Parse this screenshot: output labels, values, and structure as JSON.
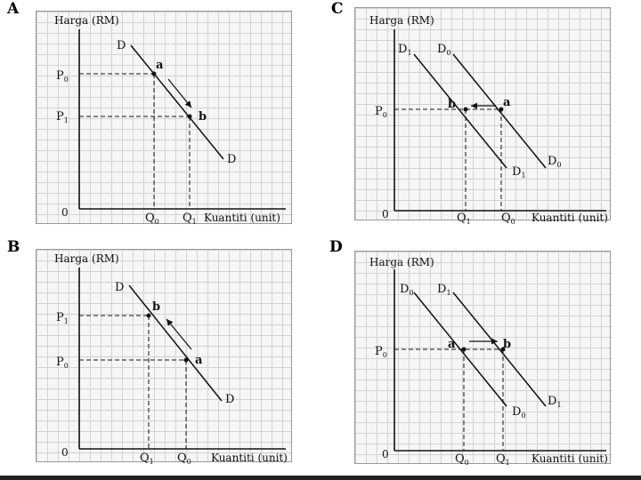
{
  "panels": {
    "A": {
      "letter": "A",
      "y_label": "Harga (RM)",
      "x_label": "Kuantiti (unit)",
      "origin": "0",
      "p_upper": "P",
      "p_upper_sub": "0",
      "p_lower": "P",
      "p_lower_sub": "1",
      "q_left": "Q",
      "q_left_sub": "0",
      "q_right": "Q",
      "q_right_sub": "1",
      "curve_top": "D",
      "curve_bottom": "D",
      "point_upper": "a",
      "point_lower": "b"
    },
    "B": {
      "letter": "B",
      "y_label": "Harga (RM)",
      "x_label": "Kuantiti (unit)",
      "origin": "0",
      "p_upper": "P",
      "p_upper_sub": "1",
      "p_lower": "P",
      "p_lower_sub": "0",
      "q_left": "Q",
      "q_left_sub": "1",
      "q_right": "Q",
      "q_right_sub": "0",
      "curve_top": "D",
      "curve_bottom": "D",
      "point_upper": "b",
      "point_lower": "a"
    },
    "C": {
      "letter": "C",
      "y_label": "Harga (RM)",
      "x_label": "Kuantiti (unit)",
      "origin": "0",
      "p": "P",
      "p_sub": "0",
      "q_left": "Q",
      "q_left_sub": "1",
      "q_right": "Q",
      "q_right_sub": "0",
      "left_curve_top": "D",
      "left_curve_top_sub": "1",
      "right_curve_top": "D",
      "right_curve_top_sub": "0",
      "left_curve_bottom": "D",
      "left_curve_bottom_sub": "1",
      "right_curve_bottom": "D",
      "right_curve_bottom_sub": "0",
      "point_left": "b",
      "point_right": "a"
    },
    "D": {
      "letter": "D",
      "y_label": "Harga (RM)",
      "x_label": "Kuantiti (unit)",
      "origin": "0",
      "p": "P",
      "p_sub": "0",
      "q_left": "Q",
      "q_left_sub": "0",
      "q_right": "Q",
      "q_right_sub": "1",
      "left_curve_top": "D",
      "left_curve_top_sub": "0",
      "right_curve_top": "D",
      "right_curve_top_sub": "1",
      "left_curve_bottom": "D",
      "left_curve_bottom_sub": "0",
      "right_curve_bottom": "D",
      "right_curve_bottom_sub": "1",
      "point_left": "a",
      "point_right": "b"
    }
  }
}
